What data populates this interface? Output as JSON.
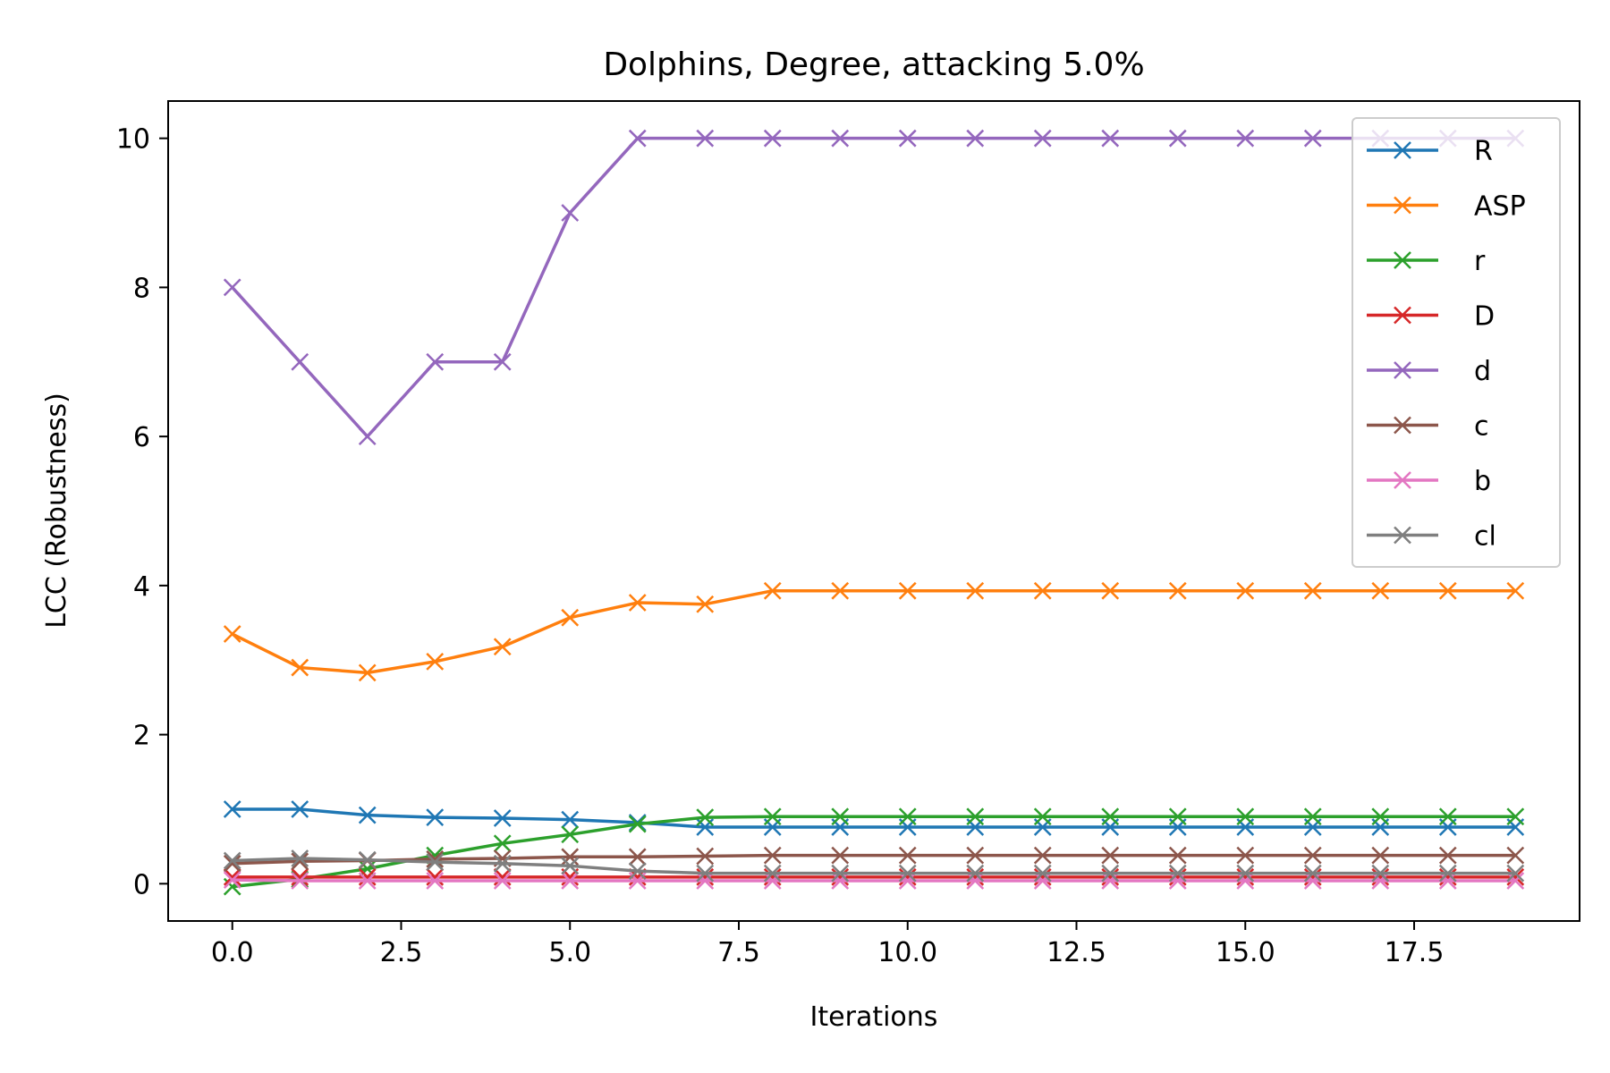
{
  "chart_data": {
    "type": "line",
    "title": "Dolphins, Degree, attacking 5.0%",
    "xlabel": "Iterations",
    "ylabel": "LCC (Robustness)",
    "xlim": [
      -0.95,
      19.95
    ],
    "ylim": [
      -0.5,
      10.5
    ],
    "xticks": [
      0,
      2.5,
      5,
      7.5,
      10,
      12.5,
      15,
      17.5
    ],
    "xtick_labels": [
      "0.0",
      "2.5",
      "5.0",
      "7.5",
      "10.0",
      "12.5",
      "15.0",
      "17.5"
    ],
    "yticks": [
      0,
      2,
      4,
      6,
      8,
      10
    ],
    "ytick_labels": [
      "0",
      "2",
      "4",
      "6",
      "8",
      "10"
    ],
    "grid": false,
    "marker": "x",
    "legend_position": "top-right",
    "x": [
      0,
      1,
      2,
      3,
      4,
      5,
      6,
      7,
      8,
      9,
      10,
      11,
      12,
      13,
      14,
      15,
      16,
      17,
      18,
      19
    ],
    "series": [
      {
        "name": "R",
        "color": "#1f77b4",
        "values": [
          1.0,
          1.0,
          0.92,
          0.89,
          0.88,
          0.86,
          0.82,
          0.76,
          0.76,
          0.76,
          0.76,
          0.76,
          0.76,
          0.76,
          0.76,
          0.76,
          0.76,
          0.76,
          0.76,
          0.76
        ]
      },
      {
        "name": "ASP",
        "color": "#ff7f0e",
        "values": [
          3.35,
          2.9,
          2.83,
          2.98,
          3.18,
          3.57,
          3.77,
          3.75,
          3.93,
          3.93,
          3.93,
          3.93,
          3.93,
          3.93,
          3.93,
          3.93,
          3.93,
          3.93,
          3.93,
          3.93
        ]
      },
      {
        "name": "r",
        "color": "#2ca02c",
        "values": [
          -0.04,
          0.06,
          0.2,
          0.38,
          0.54,
          0.66,
          0.8,
          0.89,
          0.9,
          0.9,
          0.9,
          0.9,
          0.9,
          0.9,
          0.9,
          0.9,
          0.9,
          0.9,
          0.9,
          0.9
        ]
      },
      {
        "name": "D",
        "color": "#d62728",
        "values": [
          0.09,
          0.09,
          0.09,
          0.09,
          0.09,
          0.09,
          0.09,
          0.09,
          0.09,
          0.09,
          0.09,
          0.09,
          0.09,
          0.09,
          0.09,
          0.09,
          0.09,
          0.09,
          0.09,
          0.09
        ]
      },
      {
        "name": "d",
        "color": "#9467bd",
        "values": [
          8,
          7,
          6,
          7,
          7,
          9,
          10,
          10,
          10,
          10,
          10,
          10,
          10,
          10,
          10,
          10,
          10,
          10,
          10,
          10
        ]
      },
      {
        "name": "c",
        "color": "#8c564b",
        "values": [
          0.27,
          0.3,
          0.31,
          0.33,
          0.34,
          0.36,
          0.36,
          0.37,
          0.38,
          0.38,
          0.38,
          0.38,
          0.38,
          0.38,
          0.38,
          0.38,
          0.38,
          0.38,
          0.38,
          0.38
        ]
      },
      {
        "name": "b",
        "color": "#e377c2",
        "values": [
          0.05,
          0.04,
          0.04,
          0.04,
          0.04,
          0.04,
          0.04,
          0.04,
          0.04,
          0.04,
          0.04,
          0.04,
          0.04,
          0.04,
          0.04,
          0.04,
          0.04,
          0.04,
          0.04,
          0.04
        ]
      },
      {
        "name": "cl",
        "color": "#7f7f7f",
        "values": [
          0.31,
          0.34,
          0.32,
          0.29,
          0.27,
          0.24,
          0.17,
          0.14,
          0.14,
          0.14,
          0.14,
          0.14,
          0.14,
          0.14,
          0.14,
          0.14,
          0.14,
          0.14,
          0.14,
          0.14
        ]
      }
    ]
  }
}
